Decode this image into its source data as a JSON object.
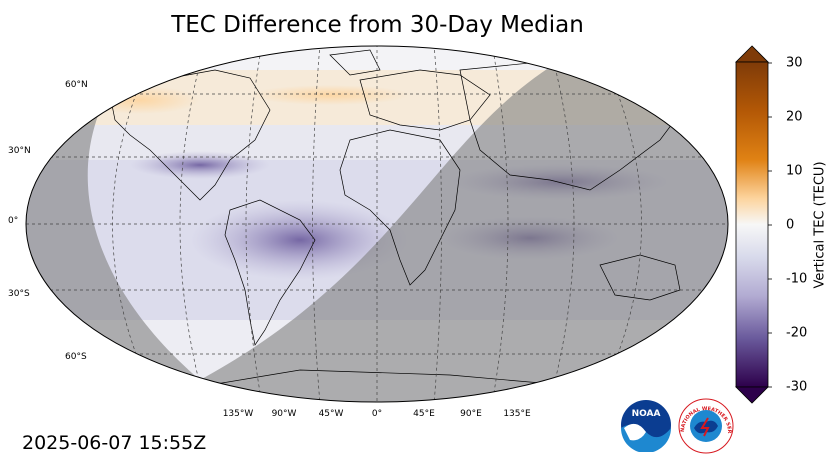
{
  "title": "TEC Difference from 30-Day Median",
  "timestamp": "2025-06-07 15:55Z",
  "lat_labels": [
    "60°N",
    "30°N",
    "0°",
    "30°S",
    "60°S"
  ],
  "lon_labels": [
    "135°W",
    "90°W",
    "45°W",
    "0°",
    "45°E",
    "90°E",
    "135°E"
  ],
  "colorbar": {
    "label": "Vertical TEC (TECU)",
    "ticks": [
      "30",
      "20",
      "10",
      "0",
      "-10",
      "-20",
      "-30"
    ],
    "range": [
      -30,
      30
    ],
    "colors": {
      "max": "#7f3b08",
      "high": "#e08214",
      "mid_high": "#fdd49e",
      "zero": "#f7f7f7",
      "mid_low": "#b8b4d6",
      "low": "#6a5a9c",
      "min": "#2d004b"
    },
    "night_shade": "#808080"
  },
  "logos": {
    "noaa": "NOAA",
    "nws": "NATIONAL WEATHER SERVICE"
  }
}
